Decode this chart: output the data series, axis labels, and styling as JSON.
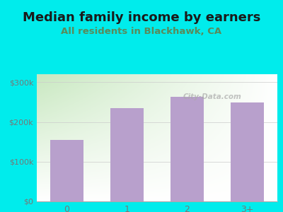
{
  "title": "Median family income by earners",
  "subtitle": "All residents in Blackhawk, CA",
  "categories": [
    "0",
    "1",
    "2",
    "3+"
  ],
  "values": [
    155000,
    235000,
    263000,
    248000
  ],
  "bar_color": "#b8a0cc",
  "title_color": "#1a1a1a",
  "subtitle_color": "#5a8a5a",
  "background_color": "#00ecec",
  "plot_bg_top_left": "#c8e8c0",
  "plot_bg_bottom_right": "#ffffff",
  "ylim": [
    0,
    320000
  ],
  "yticks": [
    0,
    100000,
    200000,
    300000
  ],
  "ytick_labels": [
    "$0",
    "$100k",
    "$200k",
    "$300k"
  ],
  "watermark": "City-Data.com",
  "title_fontsize": 13,
  "subtitle_fontsize": 9.5
}
